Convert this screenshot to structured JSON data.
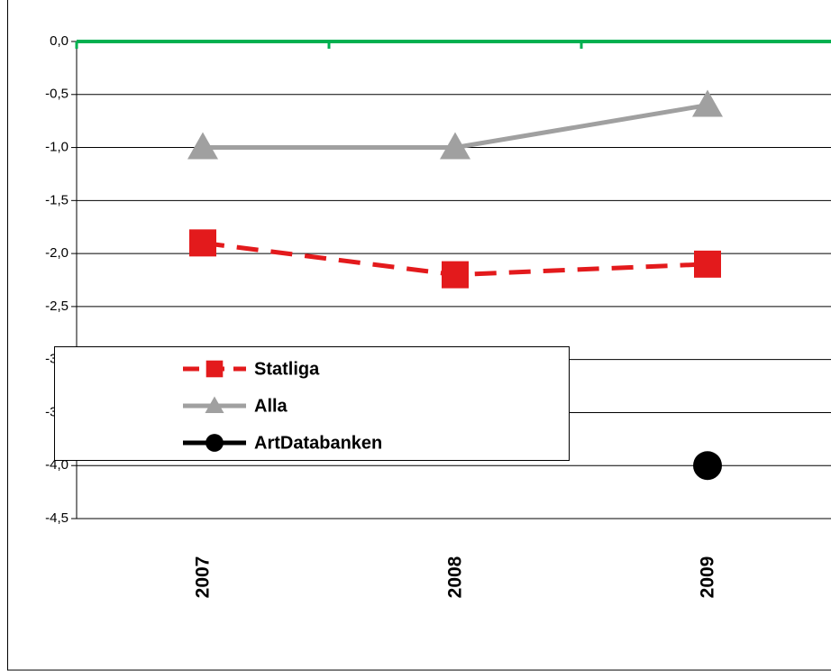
{
  "chart_data": {
    "type": "line",
    "categories": [
      "2007",
      "2008",
      "2009"
    ],
    "series": [
      {
        "name": "Statliga",
        "color": "#e31a1c",
        "marker": "square",
        "dashed": true,
        "values": [
          -1.9,
          -2.2,
          -2.1
        ]
      },
      {
        "name": "Alla",
        "color": "#a0a0a0",
        "marker": "triangle",
        "dashed": false,
        "values": [
          -1.0,
          -1.0,
          -0.6
        ]
      },
      {
        "name": "ArtDatabanken",
        "color": "#000000",
        "marker": "circle",
        "dashed": false,
        "values": [
          null,
          null,
          -4.0
        ]
      }
    ],
    "ylim": [
      -4.5,
      0
    ],
    "yticks": [
      {
        "value": 0,
        "label": "0,0"
      },
      {
        "value": -0.5,
        "label": "-0,5"
      },
      {
        "value": -1,
        "label": "-1,0"
      },
      {
        "value": -1.5,
        "label": "-1,5"
      },
      {
        "value": -2,
        "label": "-2,0"
      },
      {
        "value": -2.5,
        "label": "-2,5"
      },
      {
        "value": -3,
        "label": "-3,0"
      },
      {
        "value": -3.5,
        "label": "-3,5"
      },
      {
        "value": -4,
        "label": "-4,0"
      },
      {
        "value": -4.5,
        "label": "-4,5"
      }
    ],
    "grid": true,
    "x_axis_color": "#00b050"
  }
}
